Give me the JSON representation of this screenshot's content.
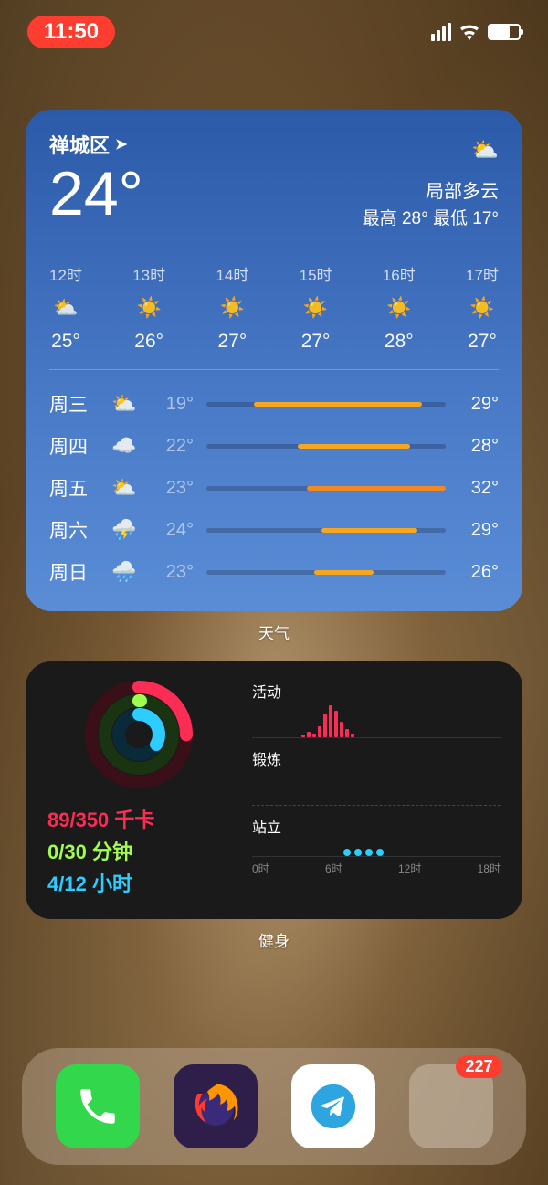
{
  "statusbar": {
    "time": "11:50",
    "battery_pct": 70
  },
  "weather": {
    "location": "禅城区",
    "current_temp": "24°",
    "condition": "局部多云",
    "high_low": "最高 28° 最低 17°",
    "gradient_top": "#2b5aa8",
    "gradient_bottom": "#5a8dd6",
    "hourly": [
      {
        "time": "12时",
        "icon": "partly-cloudy",
        "temp": "25°"
      },
      {
        "time": "13时",
        "icon": "sunny",
        "temp": "26°"
      },
      {
        "time": "14时",
        "icon": "sunny",
        "temp": "27°"
      },
      {
        "time": "15时",
        "icon": "sunny",
        "temp": "27°"
      },
      {
        "time": "16时",
        "icon": "sunny",
        "temp": "28°"
      },
      {
        "time": "17时",
        "icon": "sunny",
        "temp": "27°"
      }
    ],
    "daily": [
      {
        "day": "周三",
        "icon": "partly-cloudy",
        "low": "19°",
        "high": "29°",
        "bar_start": 20,
        "bar_end": 90,
        "bar_color": "#f5a623"
      },
      {
        "day": "周四",
        "icon": "cloudy",
        "low": "22°",
        "high": "28°",
        "bar_start": 38,
        "bar_end": 85,
        "bar_color": "#f5a623"
      },
      {
        "day": "周五",
        "icon": "partly-cloudy",
        "low": "23°",
        "high": "32°",
        "bar_start": 42,
        "bar_end": 100,
        "bar_color": "#f08a24"
      },
      {
        "day": "周六",
        "icon": "thunderstorm",
        "low": "24°",
        "high": "29°",
        "bar_start": 48,
        "bar_end": 88,
        "bar_color": "#f5a623"
      },
      {
        "day": "周日",
        "icon": "rain",
        "low": "23°",
        "high": "26°",
        "bar_start": 45,
        "bar_end": 70,
        "bar_color": "#f5a623"
      }
    ],
    "widget_label": "天气"
  },
  "fitness": {
    "move": {
      "value": "89/350",
      "unit": "千卡",
      "color": "#fc2d55"
    },
    "exercise": {
      "value": "0/30",
      "unit": "分钟",
      "color": "#a0fc4e"
    },
    "stand": {
      "value": "4/12",
      "unit": "小时",
      "color": "#2ecdff"
    },
    "rings": {
      "move_pct": 25,
      "exercise_pct": 0,
      "stand_pct": 33
    },
    "sections": {
      "activity_label": "活动",
      "exercise_label": "锻炼",
      "stand_label": "站立"
    },
    "activity_bars": [
      0,
      0,
      0,
      0,
      0,
      0,
      0,
      0,
      0,
      2,
      4,
      3,
      8,
      18,
      24,
      20,
      12,
      6,
      3,
      0,
      0,
      0,
      0,
      0
    ],
    "stand_hours": [
      0,
      0,
      0,
      0,
      0,
      0,
      0,
      0,
      0,
      1,
      1,
      1,
      1,
      0,
      0,
      0,
      0,
      0,
      0,
      0,
      0,
      0,
      0,
      0
    ],
    "time_axis": [
      "0时",
      "6时",
      "12时",
      "18时"
    ],
    "widget_label": "健身"
  },
  "dock": {
    "apps": [
      {
        "name": "phone",
        "bg": "#32d74b",
        "icon_color": "#fff"
      },
      {
        "name": "firefox",
        "bg": "#2e1e4a"
      },
      {
        "name": "telegram",
        "bg": "#ffffff",
        "icon_color": "#2ca5e0"
      },
      {
        "name": "folder",
        "badge": "227",
        "items": [
          "#2d4a6a",
          "#3a3a3a",
          "#1f8f7a",
          "#5a3a2a",
          "#2a7a4a",
          "#3a3a5a"
        ]
      }
    ]
  }
}
